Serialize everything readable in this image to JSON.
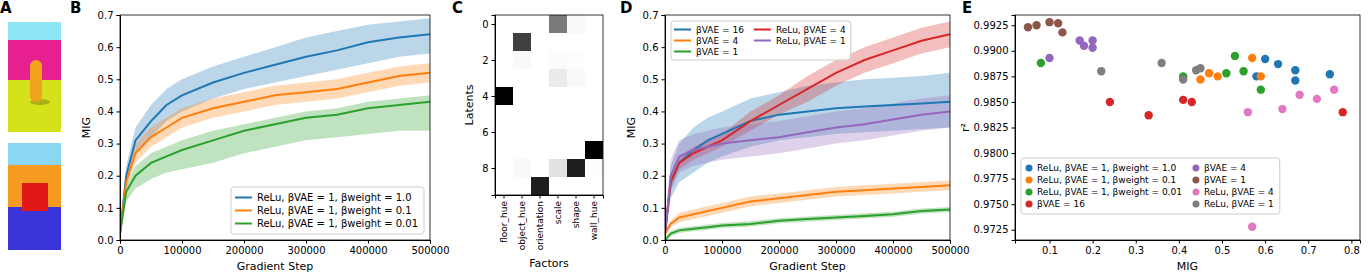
{
  "chart_data": [
    {
      "type": "image",
      "title": "A"
    },
    {
      "type": "line",
      "title": "B",
      "x_label": "Gradient Step",
      "y_label": "MIG",
      "x": [
        0,
        10000,
        25000,
        50000,
        75000,
        100000,
        150000,
        200000,
        250000,
        300000,
        350000,
        400000,
        450000,
        500000
      ],
      "xlim": [
        0,
        500000
      ],
      "xticks": [
        0,
        100000,
        200000,
        300000,
        400000,
        500000
      ],
      "ylim": [
        0,
        0.7
      ],
      "yticks": [
        {
          "value": 0,
          "label": "0.0"
        },
        0.1,
        0.2,
        0.3,
        0.4,
        0.5,
        0.6,
        0.7
      ],
      "legend": "lower right",
      "series": [
        {
          "name": "ReLu, βVAE = 1, βweight = 1.0",
          "color": "#1f77b4",
          "values": [
            0.02,
            0.2,
            0.31,
            0.37,
            0.42,
            0.45,
            0.49,
            0.52,
            0.545,
            0.57,
            0.59,
            0.615,
            0.63,
            0.64
          ],
          "lower": [
            0.01,
            0.17,
            0.27,
            0.32,
            0.37,
            0.4,
            0.44,
            0.47,
            0.49,
            0.51,
            0.53,
            0.55,
            0.57,
            0.58
          ],
          "upper": [
            0.03,
            0.23,
            0.35,
            0.42,
            0.47,
            0.5,
            0.54,
            0.57,
            0.6,
            0.63,
            0.65,
            0.67,
            0.68,
            0.69
          ]
        },
        {
          "name": "ReLu, βVAE = 1, βweight = 0.1",
          "color": "#ff7f0e",
          "values": [
            0.02,
            0.18,
            0.27,
            0.32,
            0.35,
            0.38,
            0.41,
            0.43,
            0.45,
            0.46,
            0.47,
            0.49,
            0.51,
            0.52
          ],
          "lower": [
            0.01,
            0.16,
            0.24,
            0.29,
            0.32,
            0.35,
            0.38,
            0.4,
            0.42,
            0.43,
            0.44,
            0.46,
            0.48,
            0.49
          ],
          "upper": [
            0.03,
            0.2,
            0.3,
            0.35,
            0.38,
            0.41,
            0.44,
            0.46,
            0.48,
            0.49,
            0.5,
            0.52,
            0.54,
            0.55
          ]
        },
        {
          "name": "ReLu, βVAE = 1, βweight = 0.01",
          "color": "#2ca02c",
          "values": [
            0.02,
            0.15,
            0.2,
            0.24,
            0.26,
            0.28,
            0.31,
            0.34,
            0.36,
            0.38,
            0.39,
            0.41,
            0.42,
            0.43
          ],
          "lower": [
            0.01,
            0.12,
            0.16,
            0.19,
            0.21,
            0.22,
            0.24,
            0.27,
            0.29,
            0.31,
            0.32,
            0.33,
            0.34,
            0.34
          ],
          "upper": [
            0.03,
            0.17,
            0.23,
            0.27,
            0.29,
            0.31,
            0.34,
            0.36,
            0.38,
            0.4,
            0.41,
            0.43,
            0.44,
            0.45
          ]
        }
      ]
    },
    {
      "type": "heatmap",
      "title": "C",
      "x_label": "Factors",
      "y_label": "Latents",
      "categories": [
        "floor_hue",
        "object_hue",
        "orientation",
        "scale",
        "shape",
        "wall_hue"
      ],
      "ylim": [
        -0.5,
        9.5
      ],
      "yticks": [
        0,
        2,
        4,
        6,
        8
      ],
      "cells": [
        [
          0,
          0,
          0,
          0.6,
          0.05,
          0
        ],
        [
          0,
          0.8,
          0,
          0,
          0,
          0
        ],
        [
          0,
          0.05,
          0,
          0.03,
          0.02,
          0
        ],
        [
          0,
          0,
          0,
          0.15,
          0.05,
          0
        ],
        [
          1,
          0,
          0,
          0,
          0,
          0
        ],
        [
          0,
          0,
          0,
          0,
          0,
          0
        ],
        [
          0,
          0,
          0,
          0,
          0,
          0
        ],
        [
          0,
          0,
          0,
          0,
          0,
          1
        ],
        [
          0,
          0.05,
          0,
          0.2,
          0.9,
          0.02
        ],
        [
          0,
          0,
          0.9,
          0,
          0,
          0
        ]
      ]
    },
    {
      "type": "line",
      "title": "D",
      "x_label": "Gradient Step",
      "y_label": "MIG",
      "x": [
        0,
        10000,
        25000,
        50000,
        75000,
        100000,
        150000,
        200000,
        250000,
        300000,
        350000,
        400000,
        450000,
        500000
      ],
      "xlim": [
        0,
        500000
      ],
      "xticks": [
        0,
        100000,
        200000,
        300000,
        400000,
        500000
      ],
      "ylim": [
        0,
        0.7
      ],
      "yticks": [
        {
          "value": 0,
          "label": "0.0"
        },
        0.1,
        0.2,
        0.3,
        0.4,
        0.5,
        0.6,
        0.7
      ],
      "legend": "upper left",
      "series": [
        {
          "name": "βVAE = 16",
          "color": "#1f77b4",
          "values": [
            0.02,
            0.18,
            0.24,
            0.28,
            0.31,
            0.33,
            0.37,
            0.39,
            0.4,
            0.41,
            0.415,
            0.42,
            0.425,
            0.43
          ],
          "lower": [
            0.01,
            0.13,
            0.18,
            0.21,
            0.24,
            0.26,
            0.29,
            0.31,
            0.32,
            0.33,
            0.335,
            0.34,
            0.345,
            0.35
          ],
          "upper": [
            0.03,
            0.23,
            0.3,
            0.35,
            0.38,
            0.4,
            0.44,
            0.46,
            0.48,
            0.49,
            0.5,
            0.505,
            0.51,
            0.52
          ]
        },
        {
          "name": "βVAE = 4",
          "color": "#ff7f0e",
          "values": [
            0.02,
            0.05,
            0.07,
            0.08,
            0.09,
            0.1,
            0.12,
            0.13,
            0.14,
            0.15,
            0.155,
            0.16,
            0.165,
            0.17
          ],
          "lower": [
            0.01,
            0.04,
            0.055,
            0.065,
            0.075,
            0.085,
            0.105,
            0.115,
            0.125,
            0.135,
            0.14,
            0.145,
            0.15,
            0.155
          ],
          "upper": [
            0.03,
            0.06,
            0.085,
            0.095,
            0.105,
            0.115,
            0.135,
            0.145,
            0.155,
            0.165,
            0.17,
            0.175,
            0.18,
            0.185
          ]
        },
        {
          "name": "βVAE = 1",
          "color": "#2ca02c",
          "values": [
            0,
            0.02,
            0.03,
            0.035,
            0.04,
            0.045,
            0.05,
            0.06,
            0.065,
            0.07,
            0.075,
            0.08,
            0.09,
            0.095
          ],
          "lower": [
            0,
            0.012,
            0.022,
            0.027,
            0.032,
            0.037,
            0.042,
            0.052,
            0.057,
            0.062,
            0.067,
            0.072,
            0.082,
            0.087
          ],
          "upper": [
            0.008,
            0.028,
            0.038,
            0.043,
            0.048,
            0.053,
            0.058,
            0.068,
            0.073,
            0.078,
            0.083,
            0.088,
            0.098,
            0.103
          ]
        },
        {
          "name": "ReLu, βVAE = 4",
          "color": "#d62728",
          "values": [
            0.02,
            0.18,
            0.24,
            0.27,
            0.29,
            0.31,
            0.37,
            0.42,
            0.47,
            0.52,
            0.56,
            0.59,
            0.62,
            0.64
          ],
          "lower": [
            0.01,
            0.16,
            0.22,
            0.25,
            0.27,
            0.29,
            0.34,
            0.39,
            0.43,
            0.48,
            0.52,
            0.55,
            0.58,
            0.6
          ],
          "upper": [
            0.03,
            0.2,
            0.26,
            0.29,
            0.31,
            0.33,
            0.4,
            0.45,
            0.51,
            0.56,
            0.6,
            0.63,
            0.66,
            0.68
          ]
        },
        {
          "name": "ReLu, βVAE = 1",
          "color": "#9467bd",
          "values": [
            0.02,
            0.2,
            0.26,
            0.28,
            0.29,
            0.3,
            0.31,
            0.32,
            0.335,
            0.35,
            0.36,
            0.375,
            0.39,
            0.4
          ],
          "lower": [
            0.01,
            0.15,
            0.21,
            0.23,
            0.24,
            0.25,
            0.26,
            0.27,
            0.285,
            0.3,
            0.31,
            0.325,
            0.34,
            0.35
          ],
          "upper": [
            0.03,
            0.25,
            0.31,
            0.33,
            0.34,
            0.35,
            0.36,
            0.37,
            0.385,
            0.4,
            0.41,
            0.425,
            0.44,
            0.45
          ]
        }
      ]
    },
    {
      "type": "scatter",
      "title": "E",
      "x_label": "MIG",
      "y_label": "r²",
      "xlim": [
        0.02,
        0.82
      ],
      "xticks": [
        0.1,
        0.2,
        0.3,
        0.4,
        0.5,
        0.6,
        0.7,
        0.8
      ],
      "ylim": [
        0.9715,
        0.9935
      ],
      "yticks": [
        0.9725,
        {
          "value": 0.975,
          "label": "0.9750"
        },
        0.9775,
        {
          "value": 0.98,
          "label": "0.9800"
        },
        0.9825,
        {
          "value": 0.985,
          "label": "0.9850"
        },
        0.9875,
        {
          "value": 0.99,
          "label": "0.9900"
        },
        0.9925
      ],
      "legend": "lower left",
      "marker": "circle",
      "series": [
        {
          "name": "ReLu, βVAE = 1, βweight = 1.0",
          "color": "#1f77b4",
          "x": [
            0.6,
            0.63,
            0.67,
            0.67,
            0.75,
            0.58
          ],
          "values": [
            0.9892,
            0.9887,
            0.9881,
            0.9871,
            0.9877,
            0.9875
          ]
        },
        {
          "name": "ReLu, βVAE = 1, βweight = 0.1",
          "color": "#ff7f0e",
          "x": [
            0.45,
            0.47,
            0.49,
            0.57,
            0.59
          ],
          "values": [
            0.9872,
            0.9878,
            0.9875,
            0.9893,
            0.9875
          ]
        },
        {
          "name": "ReLu, βVAE = 1, βweight = 0.01",
          "color": "#2ca02c",
          "x": [
            0.08,
            0.41,
            0.51,
            0.53,
            0.55,
            0.59
          ],
          "values": [
            0.9888,
            0.9875,
            0.9878,
            0.9895,
            0.988,
            0.9862
          ]
        },
        {
          "name": "βVAE = 16",
          "color": "#d62728",
          "x": [
            0.24,
            0.33,
            0.41,
            0.43,
            0.78
          ],
          "values": [
            0.985,
            0.9837,
            0.9852,
            0.985,
            0.984
          ]
        },
        {
          "name": "βVAE = 4",
          "color": "#9467bd",
          "x": [
            0.1,
            0.17,
            0.18,
            0.2,
            0.2
          ],
          "values": [
            0.9893,
            0.991,
            0.9905,
            0.991,
            0.9903
          ]
        },
        {
          "name": "βVAE = 1",
          "color": "#8c564b",
          "x": [
            0.05,
            0.07,
            0.1,
            0.12,
            0.13
          ],
          "values": [
            0.9923,
            0.9925,
            0.9928,
            0.9927,
            0.9918
          ]
        },
        {
          "name": "ReLu, βVAE = 4",
          "color": "#e377c2",
          "x": [
            0.56,
            0.57,
            0.64,
            0.68,
            0.72,
            0.76
          ],
          "values": [
            0.984,
            0.9728,
            0.9843,
            0.9857,
            0.9853,
            0.9862
          ]
        },
        {
          "name": "ReLu, βVAE = 1",
          "color": "#7f7f7f",
          "x": [
            0.22,
            0.36,
            0.41,
            0.44,
            0.45
          ],
          "values": [
            0.988,
            0.9888,
            0.9872,
            0.9881,
            0.9883
          ]
        }
      ]
    }
  ]
}
